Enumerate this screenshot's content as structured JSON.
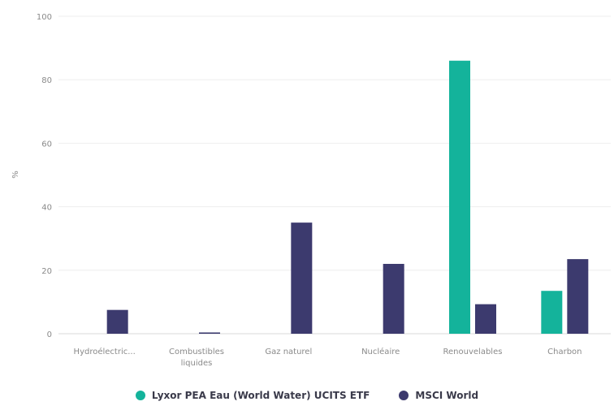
{
  "chart_data": {
    "type": "bar",
    "categories": [
      [
        "Hydroélectric..."
      ],
      [
        "Combustibles",
        "liquides"
      ],
      [
        "Gaz naturel"
      ],
      [
        "Nucléaire"
      ],
      [
        "Renouvelables"
      ],
      [
        "Charbon"
      ]
    ],
    "ylabel": "%",
    "ylim": [
      0,
      100
    ],
    "yticks": [
      0,
      20,
      40,
      60,
      80,
      100
    ],
    "series": [
      {
        "name": "Lyxor PEA Eau (World Water) UCITS ETF",
        "color": "#14b39b",
        "values": [
          0,
          0,
          0,
          0,
          86,
          13.5
        ]
      },
      {
        "name": "MSCI World",
        "color": "#3c3a6e",
        "values": [
          7.5,
          0.4,
          35,
          22,
          9.3,
          23.5
        ]
      }
    ],
    "grid": true,
    "legend_position": "bottom"
  }
}
